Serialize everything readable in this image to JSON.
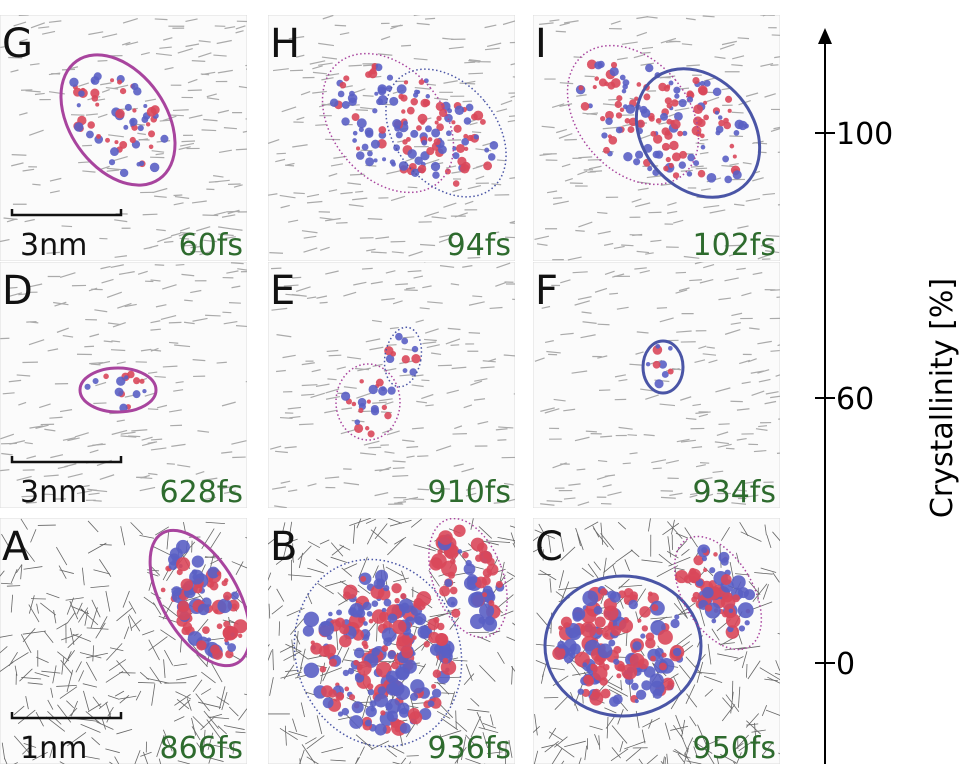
{
  "panels": [
    {
      "label": "G",
      "time": "60fs",
      "scale_bar": "3nm"
    },
    {
      "label": "H",
      "time": "94fs"
    },
    {
      "label": "I",
      "time": "102fs"
    },
    {
      "label": "D",
      "time": "628fs",
      "scale_bar": "3nm"
    },
    {
      "label": "E",
      "time": "910fs"
    },
    {
      "label": "F",
      "time": "934fs"
    },
    {
      "label": "A",
      "time": "866fs",
      "scale_bar": "1nm"
    },
    {
      "label": "B",
      "time": "936fs"
    },
    {
      "label": "C",
      "time": "950fs"
    }
  ],
  "axis": {
    "label": "Crystallinity [%]",
    "ticks": [
      0,
      60,
      100
    ]
  }
}
